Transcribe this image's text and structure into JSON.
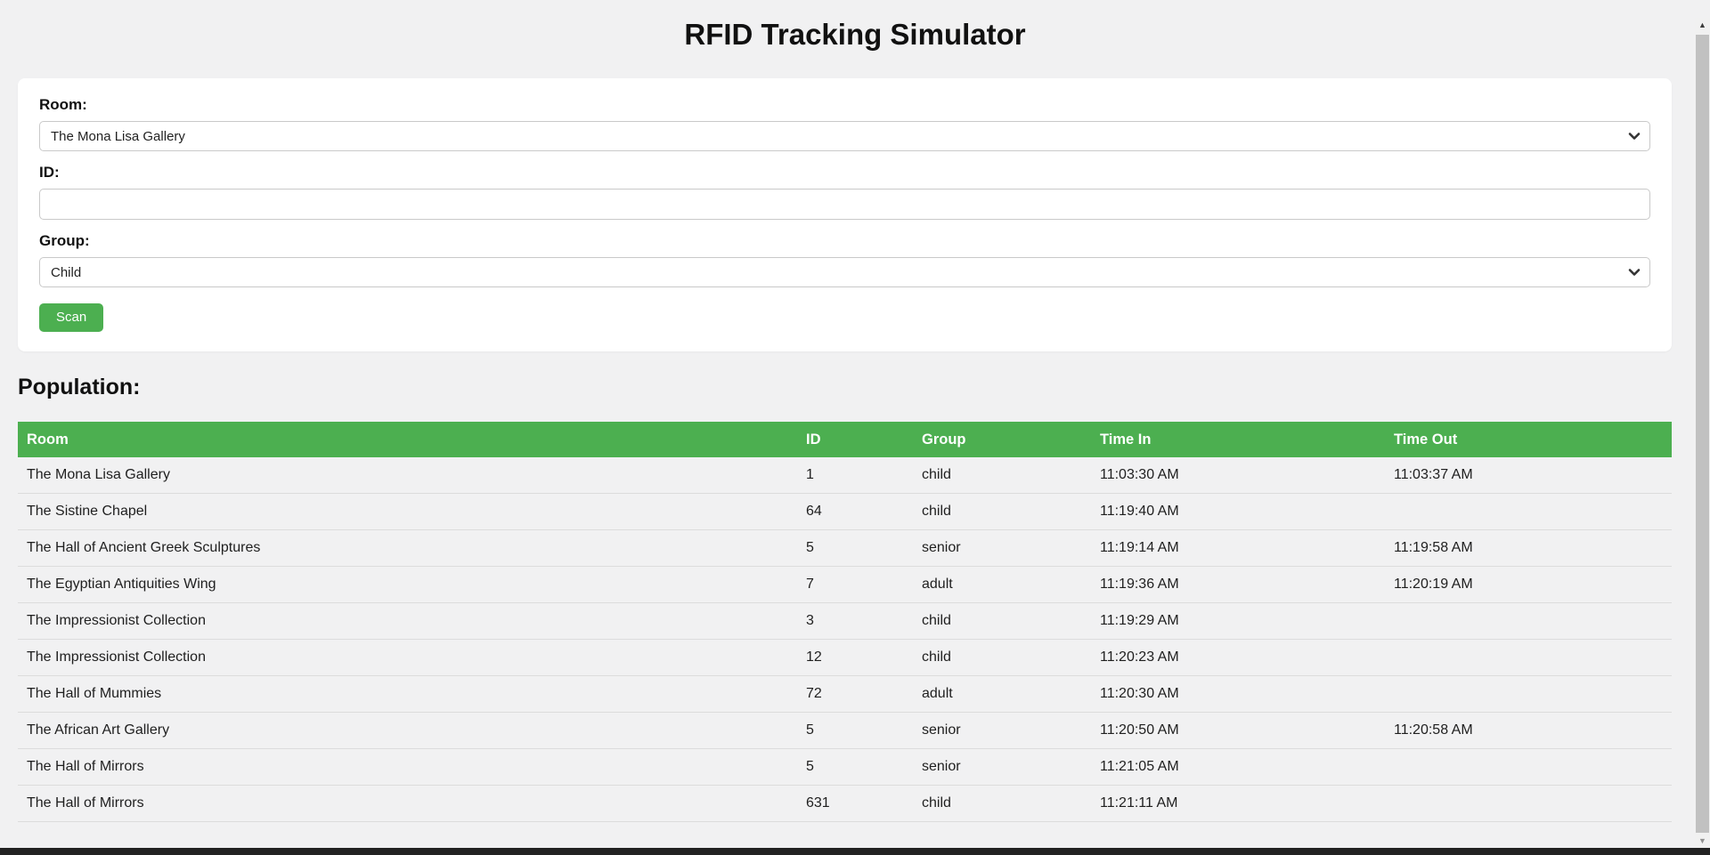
{
  "page": {
    "title": "RFID Tracking Simulator"
  },
  "form": {
    "room_label": "Room:",
    "room_value": "The Mona Lisa Gallery",
    "id_label": "ID:",
    "id_value": "",
    "group_label": "Group:",
    "group_value": "Child",
    "scan_label": "Scan"
  },
  "population": {
    "heading": "Population:"
  },
  "table": {
    "columns": [
      "Room",
      "ID",
      "Group",
      "Time In",
      "Time Out"
    ],
    "rows": [
      {
        "room": "The Mona Lisa Gallery",
        "id": "1",
        "group": "child",
        "time_in": "11:03:30 AM",
        "time_out": "11:03:37 AM"
      },
      {
        "room": "The Sistine Chapel",
        "id": "64",
        "group": "child",
        "time_in": "11:19:40 AM",
        "time_out": ""
      },
      {
        "room": "The Hall of Ancient Greek Sculptures",
        "id": "5",
        "group": "senior",
        "time_in": "11:19:14 AM",
        "time_out": "11:19:58 AM"
      },
      {
        "room": "The Egyptian Antiquities Wing",
        "id": "7",
        "group": "adult",
        "time_in": "11:19:36 AM",
        "time_out": "11:20:19 AM"
      },
      {
        "room": "The Impressionist Collection",
        "id": "3",
        "group": "child",
        "time_in": "11:19:29 AM",
        "time_out": ""
      },
      {
        "room": "The Impressionist Collection",
        "id": "12",
        "group": "child",
        "time_in": "11:20:23 AM",
        "time_out": ""
      },
      {
        "room": "The Hall of Mummies",
        "id": "72",
        "group": "adult",
        "time_in": "11:20:30 AM",
        "time_out": ""
      },
      {
        "room": "The African Art Gallery",
        "id": "5",
        "group": "senior",
        "time_in": "11:20:50 AM",
        "time_out": "11:20:58 AM"
      },
      {
        "room": "The Hall of Mirrors",
        "id": "5",
        "group": "senior",
        "time_in": "11:21:05 AM",
        "time_out": ""
      },
      {
        "room": "The Hall of Mirrors",
        "id": "631",
        "group": "child",
        "time_in": "11:21:11 AM",
        "time_out": ""
      }
    ]
  },
  "icons": {
    "chevron_down": "v",
    "scroll_up": "▲",
    "scroll_down": "▼"
  },
  "colors": {
    "accent_green": "#4caf50",
    "header_text": "#ffffff",
    "page_bg": "#f1f1f2",
    "row_border": "#dcdcdc",
    "scrollbar_thumb": "#c1c1c1"
  }
}
